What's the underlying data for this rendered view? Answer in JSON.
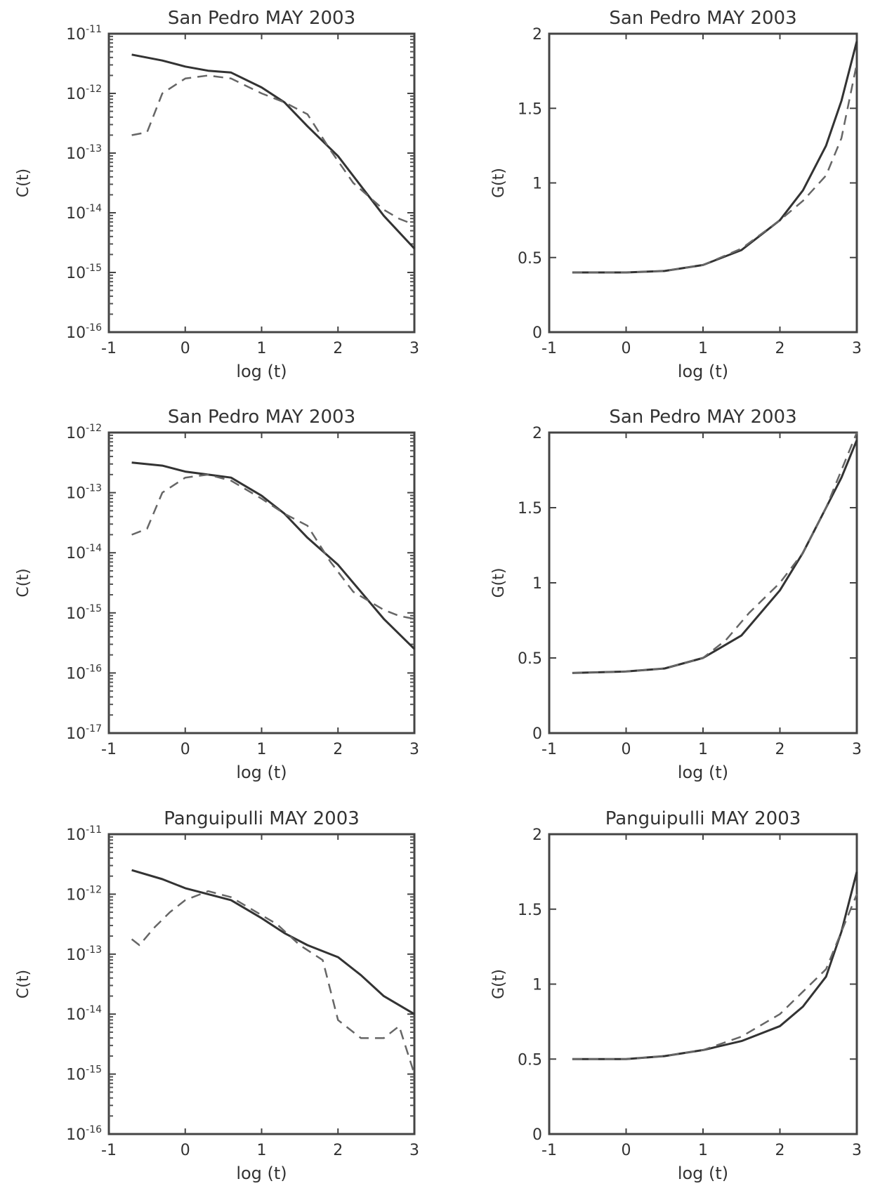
{
  "chart_data": [
    {
      "type": "line",
      "title": "San Pedro MAY 2003",
      "xlabel": "log (t)",
      "ylabel": "C(t)",
      "xlim": [
        -1,
        3
      ],
      "ylog": true,
      "ylim": [
        1e-16,
        1e-11
      ],
      "xticks": [
        -1,
        0,
        1,
        2,
        3
      ],
      "yticks": [
        {
          "base": "10",
          "exp": "-16"
        },
        {
          "base": "10",
          "exp": "-15"
        },
        {
          "base": "10",
          "exp": "-14"
        },
        {
          "base": "10",
          "exp": "-13"
        },
        {
          "base": "10",
          "exp": "-12"
        },
        {
          "base": "10",
          "exp": "-11"
        }
      ],
      "series": [
        {
          "style": "solid",
          "x": [
            -0.7,
            -0.3,
            0.0,
            0.3,
            0.6,
            1.0,
            1.3,
            1.6,
            2.0,
            2.3,
            2.6,
            3.0
          ],
          "y": [
            -11.35,
            -11.45,
            -11.55,
            -11.62,
            -11.65,
            -11.9,
            -12.15,
            -12.55,
            -13.05,
            -13.55,
            -14.05,
            -14.6
          ]
        },
        {
          "style": "dashed",
          "x": [
            -0.7,
            -0.5,
            -0.3,
            0.0,
            0.3,
            0.6,
            1.0,
            1.3,
            1.6,
            1.9,
            2.2,
            2.6,
            2.8,
            3.0
          ],
          "y": [
            -12.7,
            -12.65,
            -12.0,
            -11.75,
            -11.7,
            -11.75,
            -12.0,
            -12.15,
            -12.35,
            -12.95,
            -13.5,
            -13.95,
            -14.1,
            -14.2
          ]
        }
      ]
    },
    {
      "type": "line",
      "title": "San Pedro MAY 2003",
      "xlabel": "log (t)",
      "ylabel": "G(t)",
      "xlim": [
        -1,
        3
      ],
      "ylim": [
        0,
        2
      ],
      "xticks": [
        -1,
        0,
        1,
        2,
        3
      ],
      "yticks": [
        {
          "base": "0"
        },
        {
          "base": "0.5"
        },
        {
          "base": "1"
        },
        {
          "base": "1.5"
        },
        {
          "base": "2"
        }
      ],
      "series": [
        {
          "style": "solid",
          "x": [
            -0.7,
            0.0,
            0.5,
            1.0,
            1.5,
            2.0,
            2.3,
            2.6,
            2.8,
            3.0
          ],
          "y": [
            0.4,
            0.4,
            0.41,
            0.45,
            0.55,
            0.75,
            0.95,
            1.25,
            1.55,
            1.95
          ]
        },
        {
          "style": "dashed",
          "x": [
            -0.7,
            0.0,
            0.5,
            1.0,
            1.5,
            2.0,
            2.3,
            2.6,
            2.8,
            3.0
          ],
          "y": [
            0.4,
            0.4,
            0.41,
            0.45,
            0.56,
            0.75,
            0.88,
            1.05,
            1.3,
            1.8
          ]
        }
      ]
    },
    {
      "type": "line",
      "title": "San Pedro MAY 2003",
      "xlabel": "log (t)",
      "ylabel": "C(t)",
      "xlim": [
        -1,
        3
      ],
      "ylog": true,
      "ylim": [
        1e-17,
        1e-12
      ],
      "xticks": [
        -1,
        0,
        1,
        2,
        3
      ],
      "yticks": [
        {
          "base": "10",
          "exp": "-17"
        },
        {
          "base": "10",
          "exp": "-16"
        },
        {
          "base": "10",
          "exp": "-15"
        },
        {
          "base": "10",
          "exp": "-14"
        },
        {
          "base": "10",
          "exp": "-13"
        },
        {
          "base": "10",
          "exp": "-12"
        }
      ],
      "series": [
        {
          "style": "solid",
          "x": [
            -0.7,
            -0.3,
            0.0,
            0.3,
            0.6,
            1.0,
            1.3,
            1.6,
            2.0,
            2.3,
            2.6,
            3.0
          ],
          "y": [
            -12.5,
            -12.55,
            -12.65,
            -12.7,
            -12.75,
            -13.05,
            -13.35,
            -13.75,
            -14.2,
            -14.65,
            -15.1,
            -15.6
          ]
        },
        {
          "style": "dashed",
          "x": [
            -0.7,
            -0.5,
            -0.3,
            0.0,
            0.3,
            0.6,
            1.0,
            1.3,
            1.6,
            1.9,
            2.2,
            2.6,
            2.8,
            3.0
          ],
          "y": [
            -13.7,
            -13.6,
            -13.0,
            -12.75,
            -12.7,
            -12.8,
            -13.1,
            -13.35,
            -13.55,
            -14.15,
            -14.65,
            -14.95,
            -15.05,
            -15.1
          ]
        }
      ]
    },
    {
      "type": "line",
      "title": "San Pedro MAY 2003",
      "xlabel": "log (t)",
      "ylabel": "G(t)",
      "xlim": [
        -1,
        3
      ],
      "ylim": [
        0,
        2
      ],
      "xticks": [
        -1,
        0,
        1,
        2,
        3
      ],
      "yticks": [
        {
          "base": "0"
        },
        {
          "base": "0.5"
        },
        {
          "base": "1"
        },
        {
          "base": "1.5"
        },
        {
          "base": "2"
        }
      ],
      "series": [
        {
          "style": "solid",
          "x": [
            -0.7,
            0.0,
            0.5,
            1.0,
            1.5,
            2.0,
            2.3,
            2.6,
            2.8,
            3.0
          ],
          "y": [
            0.4,
            0.41,
            0.43,
            0.5,
            0.65,
            0.95,
            1.2,
            1.5,
            1.7,
            1.95
          ]
        },
        {
          "style": "dashed",
          "x": [
            -0.7,
            0.0,
            0.5,
            1.0,
            1.3,
            1.6,
            2.0,
            2.3,
            2.6,
            3.0
          ],
          "y": [
            0.4,
            0.41,
            0.43,
            0.5,
            0.62,
            0.8,
            1.0,
            1.2,
            1.5,
            2.0
          ]
        }
      ]
    },
    {
      "type": "line",
      "title": "Panguipulli MAY 2003",
      "xlabel": "log (t)",
      "ylabel": "C(t)",
      "xlim": [
        -1,
        3
      ],
      "ylog": true,
      "ylim": [
        1e-16,
        1e-11
      ],
      "xticks": [
        -1,
        0,
        1,
        2,
        3
      ],
      "yticks": [
        {
          "base": "10",
          "exp": "-16"
        },
        {
          "base": "10",
          "exp": "-15"
        },
        {
          "base": "10",
          "exp": "-14"
        },
        {
          "base": "10",
          "exp": "-13"
        },
        {
          "base": "10",
          "exp": "-12"
        },
        {
          "base": "10",
          "exp": "-11"
        }
      ],
      "series": [
        {
          "style": "solid",
          "x": [
            -0.7,
            -0.3,
            0.0,
            0.3,
            0.6,
            1.0,
            1.3,
            1.6,
            2.0,
            2.3,
            2.6,
            3.0
          ],
          "y": [
            -11.6,
            -11.75,
            -11.9,
            -12.0,
            -12.1,
            -12.4,
            -12.65,
            -12.85,
            -13.05,
            -13.35,
            -13.7,
            -14.0
          ]
        },
        {
          "style": "dashed",
          "x": [
            -0.7,
            -0.6,
            -0.4,
            -0.2,
            0.0,
            0.3,
            0.6,
            1.0,
            1.2,
            1.5,
            1.8,
            2.0,
            2.3,
            2.6,
            2.8,
            3.0
          ],
          "y": [
            -12.75,
            -12.85,
            -12.55,
            -12.3,
            -12.1,
            -11.95,
            -12.05,
            -12.35,
            -12.5,
            -12.85,
            -13.1,
            -14.1,
            -14.4,
            -14.4,
            -14.2,
            -15.0
          ]
        }
      ]
    },
    {
      "type": "line",
      "title": "Panguipulli MAY 2003",
      "xlabel": "log (t)",
      "ylabel": "G(t)",
      "xlim": [
        -1,
        3
      ],
      "ylim": [
        0,
        2
      ],
      "xticks": [
        -1,
        0,
        1,
        2,
        3
      ],
      "yticks": [
        {
          "base": "0"
        },
        {
          "base": "0.5"
        },
        {
          "base": "1"
        },
        {
          "base": "1.5"
        },
        {
          "base": "2"
        }
      ],
      "series": [
        {
          "style": "solid",
          "x": [
            -0.7,
            0.0,
            0.5,
            1.0,
            1.5,
            2.0,
            2.3,
            2.6,
            2.8,
            3.0
          ],
          "y": [
            0.5,
            0.5,
            0.52,
            0.56,
            0.62,
            0.72,
            0.85,
            1.05,
            1.35,
            1.75
          ]
        },
        {
          "style": "dashed",
          "x": [
            -0.7,
            0.0,
            0.5,
            1.0,
            1.5,
            2.0,
            2.3,
            2.6,
            2.8,
            3.0
          ],
          "y": [
            0.5,
            0.5,
            0.52,
            0.56,
            0.65,
            0.8,
            0.95,
            1.1,
            1.35,
            1.6
          ]
        }
      ]
    }
  ]
}
